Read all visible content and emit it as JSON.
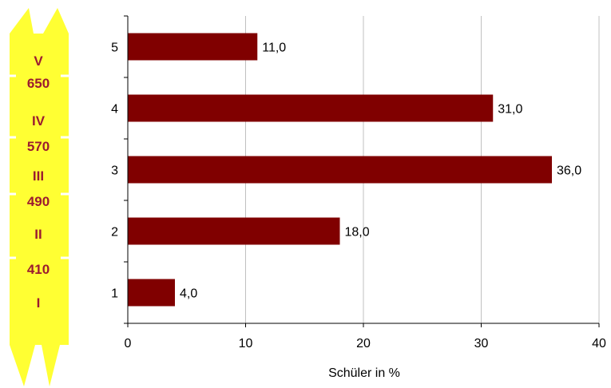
{
  "chart_data": {
    "type": "bar",
    "orientation": "horizontal",
    "categories": [
      "1",
      "2",
      "3",
      "4",
      "5"
    ],
    "values": [
      4.0,
      18.0,
      36.0,
      31.0,
      11.0
    ],
    "value_labels": [
      "4,0",
      "18,0",
      "36,0",
      "31,0",
      "11,0"
    ],
    "title": "",
    "xlabel": "Schüler in %",
    "ylabel": "",
    "xlim": [
      0,
      40
    ],
    "x_ticks": [
      0,
      10,
      20,
      30,
      40
    ],
    "x_tick_labels": [
      "0",
      "10",
      "20",
      "30",
      "40"
    ],
    "grid": "vertical",
    "legend": "none",
    "bar_color": "#800000"
  },
  "scale": {
    "color": "#ffff33",
    "label_color": "#9b1b30",
    "levels": [
      "V",
      "IV",
      "III",
      "II",
      "I"
    ],
    "cut_scores": [
      "650",
      "570",
      "490",
      "410"
    ]
  }
}
